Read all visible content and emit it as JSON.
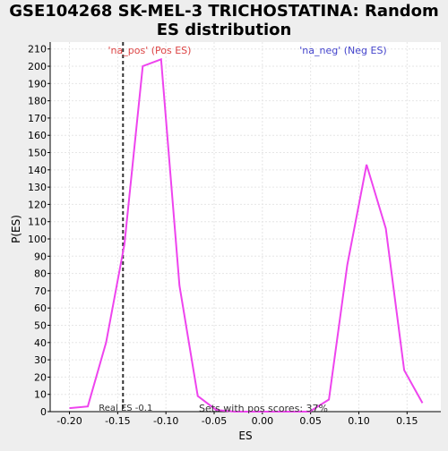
{
  "chart_data": {
    "type": "line",
    "title": "GSE104268 SK-MEL-3 TRICHOSTATINA: Random ES distribution",
    "title_lines": [
      "GSE104268 SK-MEL-3 TRICHOSTATINA: Random",
      "ES distribution"
    ],
    "xlabel": "ES",
    "ylabel": "P(ES)",
    "xlim": [
      -0.22,
      0.185
    ],
    "ylim": [
      0,
      214
    ],
    "x_ticks": [
      -0.2,
      -0.15,
      -0.1,
      -0.05,
      0.0,
      0.05,
      0.1,
      0.15
    ],
    "x_tick_labels": [
      "-0.20",
      "-0.15",
      "-0.10",
      "-0.05",
      "0.00",
      "0.05",
      "0.10",
      "0.15"
    ],
    "y_ticks": [
      0,
      10,
      20,
      30,
      40,
      50,
      60,
      70,
      80,
      90,
      100,
      110,
      120,
      130,
      140,
      150,
      160,
      170,
      180,
      190,
      200,
      210
    ],
    "y_tick_labels": [
      "0",
      "10",
      "20",
      "30",
      "40",
      "50",
      "60",
      "70",
      "80",
      "90",
      "100",
      "110",
      "120",
      "130",
      "140",
      "150",
      "160",
      "170",
      "180",
      "190",
      "200",
      "210"
    ],
    "grid": true,
    "series": [
      {
        "color": "#ee44ee",
        "points": [
          [
            -0.2,
            2
          ],
          [
            -0.181,
            3
          ],
          [
            -0.162,
            40
          ],
          [
            -0.143,
            97
          ],
          [
            -0.124,
            200
          ],
          [
            -0.105,
            204
          ],
          [
            -0.086,
            73
          ],
          [
            -0.067,
            9
          ],
          [
            -0.048,
            1
          ],
          [
            -0.029,
            0
          ],
          [
            0.049,
            0
          ],
          [
            0.069,
            7
          ],
          [
            0.088,
            85
          ],
          [
            0.108,
            143
          ],
          [
            0.128,
            106
          ],
          [
            0.147,
            24
          ],
          [
            0.166,
            5
          ]
        ]
      }
    ],
    "real_es": {
      "x": -0.1445,
      "label": "Real ES -0.1",
      "color": "#333333"
    },
    "annotations": [
      {
        "id": "pos",
        "text": "'na_pos' (Pos ES)",
        "color": "#dd4444"
      },
      {
        "id": "neg",
        "text": "'na_neg' (Neg ES)",
        "color": "#4444cc"
      },
      {
        "id": "sets",
        "text": "Sets with pos scores: 37%",
        "color": "#333333"
      }
    ]
  }
}
